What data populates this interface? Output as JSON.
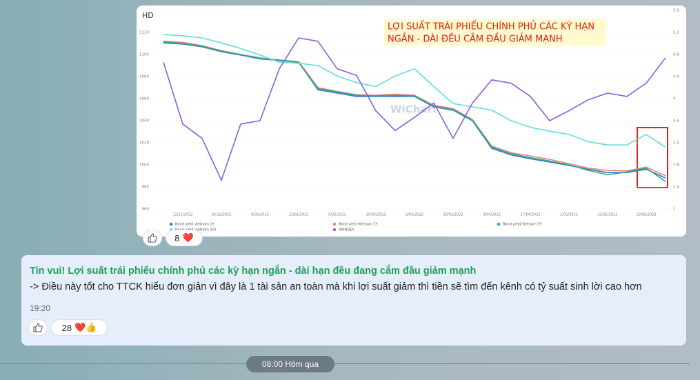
{
  "chart_data": {
    "type": "line",
    "corner_label": "HD",
    "watermark": "WiChart",
    "title": [
      "LỢI SUẤT TRÁI PHIẾU CHÍNH PHỦ CÁC KỲ HẠN",
      "NGẮN - DÀI ĐỀU CẮM ĐẦU GIẢM MẠNH"
    ],
    "categories": [
      null,
      "12/12/2022",
      null,
      "26/12/2022",
      null,
      "9/01/2023",
      null,
      "23/01/2023",
      null,
      "6/02/2023",
      null,
      "20/02/2023",
      null,
      "6/03/2023",
      null,
      "20/03/2023",
      null,
      "3/04/2023",
      null,
      "17/04/2023",
      null,
      "1/05/2023",
      null,
      "15/05/2023",
      null,
      "29/05/2023",
      null
    ],
    "ylim": [
      960,
      1140
    ],
    "yticks": [
      960,
      980,
      1000,
      1020,
      1040,
      1060,
      1080,
      1100,
      1120
    ],
    "y2lim": [
      2,
      5.6
    ],
    "y2ticks": [
      2,
      2.4,
      2.8,
      3.2,
      3.6,
      4,
      4.4,
      4.8,
      5.2,
      5.6
    ],
    "series": [
      {
        "name": "Bond yield Vietnam 1Y",
        "color": "#3b6fe0",
        "axis": "y2",
        "values": [
          5.01,
          4.99,
          4.94,
          4.85,
          4.79,
          4.72,
          4.69,
          4.66,
          4.16,
          4.1,
          4.04,
          4.04,
          4.04,
          4.04,
          3.85,
          3.79,
          3.6,
          3.1,
          2.98,
          2.91,
          2.85,
          2.79,
          2.72,
          2.66,
          2.66,
          2.72,
          2.56
        ]
      },
      {
        "name": "Bond yield Vietnam 3Y",
        "color": "#f08070",
        "axis": "y2",
        "values": [
          5.04,
          5.02,
          4.96,
          4.87,
          4.8,
          4.74,
          4.7,
          4.67,
          4.2,
          4.13,
          4.07,
          4.06,
          4.08,
          4.06,
          3.88,
          3.82,
          3.62,
          3.14,
          3.02,
          2.96,
          2.9,
          2.82,
          2.74,
          2.7,
          2.69,
          2.76,
          2.6
        ]
      },
      {
        "name": "Bond yield Vietnam 5Y",
        "color": "#20b080",
        "axis": "y2",
        "values": [
          5.03,
          5.0,
          4.95,
          4.86,
          4.8,
          4.73,
          4.7,
          4.66,
          4.18,
          4.12,
          4.06,
          4.05,
          4.06,
          4.05,
          3.86,
          3.8,
          3.61,
          3.12,
          3.0,
          2.93,
          2.87,
          2.8,
          2.7,
          2.62,
          2.67,
          2.74,
          2.5
        ]
      },
      {
        "name": "Bond yield Vietnam 10Y",
        "color": "#60dce0",
        "axis": "y2",
        "values": [
          5.16,
          5.14,
          5.1,
          5.01,
          4.91,
          4.79,
          4.66,
          4.64,
          4.6,
          4.41,
          4.29,
          4.22,
          4.41,
          4.54,
          4.22,
          3.91,
          3.85,
          3.79,
          3.6,
          3.48,
          3.41,
          3.35,
          3.22,
          3.16,
          3.16,
          3.35,
          3.12
        ]
      },
      {
        "name": "VNINDEX",
        "color": "#8a5ce0",
        "axis": "y",
        "values": [
          1093,
          1037,
          1024,
          986,
          1037,
          1040,
          1087,
          1115,
          1112,
          1087,
          1081,
          1049,
          1031,
          1043,
          1056,
          1024,
          1056,
          1077,
          1074,
          1062,
          1040,
          1049,
          1059,
          1065,
          1062,
          1074,
          1097
        ]
      }
    ]
  },
  "image_reactions": {
    "count": "8",
    "emoji": "❤️"
  },
  "message": {
    "headline": "Tin vui! Lợi suất trái phiếu chính phủ các kỳ hạn ngắn - dài hạn đều đang cắm đầu giảm mạnh",
    "body": "-> Điều này tốt cho TTCK hiểu đơn giản vì đây là 1 tài sản an toàn mà khi lợi suất giảm thì tiền sẽ tìm đến kênh có tỷ suất sinh lời cao hơn",
    "time": "19:20",
    "reactions": {
      "count": "28",
      "emoji": "❤️👍"
    }
  },
  "date_separator": "08:00 Hôm qua"
}
